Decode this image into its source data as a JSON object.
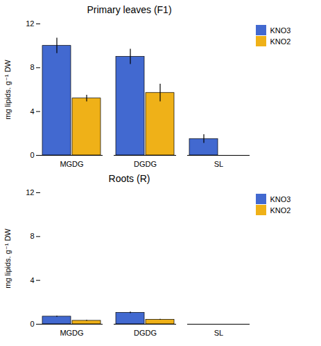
{
  "chart_data": [
    {
      "type": "bar",
      "title": "Primary leaves (F1)",
      "ylabel": "mg lipids. g⁻¹ DW",
      "categories": [
        "MGDG",
        "DGDG",
        "SL"
      ],
      "series": [
        {
          "name": "KNO3",
          "values": [
            10.0,
            9.0,
            1.5
          ],
          "errors": [
            0.7,
            0.7,
            0.4
          ]
        },
        {
          "name": "KNO2",
          "values": [
            5.2,
            5.7,
            0.0
          ],
          "errors": [
            0.3,
            0.8,
            0.0
          ]
        }
      ],
      "ylim": [
        0,
        12
      ],
      "yticks": [
        0,
        4,
        8,
        12
      ],
      "grid": false,
      "legend": "upper right"
    },
    {
      "type": "bar",
      "title": "Roots (R)",
      "ylabel": "mg lipids. g⁻¹ DW",
      "categories": [
        "MGDG",
        "DGDG",
        "SL"
      ],
      "series": [
        {
          "name": "KNO3",
          "values": [
            0.7,
            1.05,
            0.0
          ],
          "errors": [
            0.05,
            0.07,
            0.0
          ]
        },
        {
          "name": "KNO2",
          "values": [
            0.32,
            0.42,
            0.0
          ],
          "errors": [
            0.04,
            0.04,
            0.0
          ]
        }
      ],
      "ylim": [
        0,
        12
      ],
      "yticks": [
        0,
        4,
        8,
        12
      ],
      "grid": false,
      "legend": "upper right"
    }
  ]
}
